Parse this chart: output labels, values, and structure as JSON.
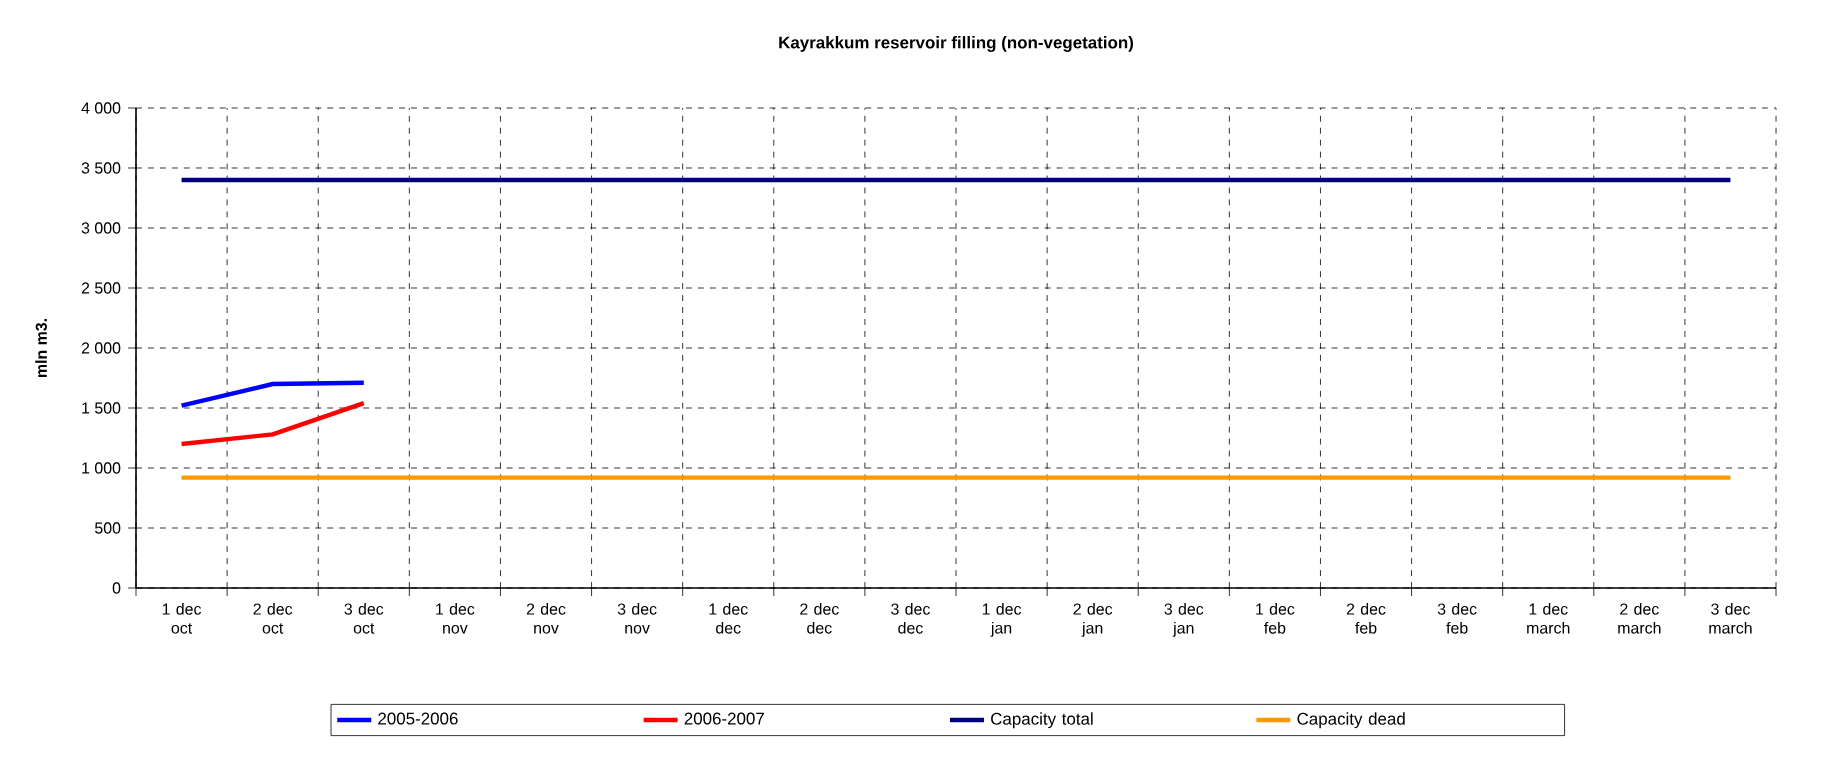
{
  "chart_data": {
    "type": "line",
    "title": "Kayrakkum reservoir filling  (non-vegetation)",
    "ylabel": "mln m3.",
    "categories": [
      "1 dec oct",
      "2 dec oct",
      "3 dec oct",
      "1 dec nov",
      "2 dec nov",
      "3 dec nov",
      "1 dec dec",
      "2 dec dec",
      "3 dec dec",
      "1 dec jan",
      "2 dec jan",
      "3 dec jan",
      "1 dec feb",
      "2 dec feb",
      "3 dec feb",
      "1 dec march",
      "2 dec march",
      "3 dec march"
    ],
    "series": [
      {
        "name": "2005-2006",
        "color": "#0000ff",
        "values": [
          1520,
          1700,
          1710,
          null,
          null,
          null,
          null,
          null,
          null,
          null,
          null,
          null,
          null,
          null,
          null,
          null,
          null,
          null
        ]
      },
      {
        "name": "2006-2007",
        "color": "#ff0000",
        "values": [
          1200,
          1280,
          1540,
          null,
          null,
          null,
          null,
          null,
          null,
          null,
          null,
          null,
          null,
          null,
          null,
          null,
          null,
          null
        ]
      },
      {
        "name": "Capacity total",
        "color": "#000080",
        "values": [
          3400,
          3400,
          3400,
          3400,
          3400,
          3400,
          3400,
          3400,
          3400,
          3400,
          3400,
          3400,
          3400,
          3400,
          3400,
          3400,
          3400,
          3400
        ]
      },
      {
        "name": "Capacity dead",
        "color": "#ff9900",
        "values": [
          920,
          920,
          920,
          920,
          920,
          920,
          920,
          920,
          920,
          920,
          920,
          920,
          920,
          920,
          920,
          920,
          920,
          920
        ]
      }
    ],
    "ylim": [
      0,
      4000
    ],
    "yticks": [
      0,
      500,
      {
        "value": 1000,
        "label": "1 000"
      },
      {
        "value": 1500,
        "label": "1 500"
      },
      {
        "value": 2000,
        "label": "2 000"
      },
      {
        "value": 2500,
        "label": "2 500"
      },
      {
        "value": 3000,
        "label": "3 000"
      },
      {
        "value": 3500,
        "label": "3 500"
      },
      {
        "value": 4000,
        "label": "4 000"
      }
    ],
    "grid": true,
    "legend": "bottom",
    "marker": "none",
    "line_style": "solid"
  }
}
